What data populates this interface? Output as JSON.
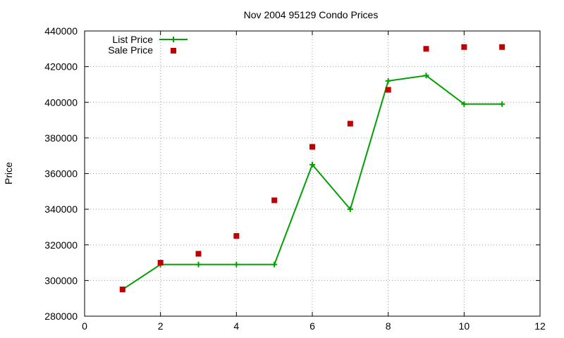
{
  "chart_data": {
    "type": "line",
    "title": "Nov 2004 95129 Condo Prices",
    "xlabel": "",
    "ylabel": "Price",
    "xlim": [
      0,
      12
    ],
    "ylim": [
      280000,
      440000
    ],
    "x_ticks": [
      0,
      2,
      4,
      6,
      8,
      10,
      12
    ],
    "y_ticks": [
      280000,
      300000,
      320000,
      340000,
      360000,
      380000,
      400000,
      420000,
      440000
    ],
    "grid": true,
    "legend_position": "top-left",
    "series": [
      {
        "name": "List Price",
        "style": "line-with-plus-markers",
        "color": "#00a000",
        "x": [
          1,
          2,
          3,
          4,
          5,
          6,
          7,
          8,
          9,
          10,
          11
        ],
        "values": [
          295000,
          309000,
          309000,
          309000,
          309000,
          365000,
          340000,
          412000,
          415000,
          399000,
          399000
        ]
      },
      {
        "name": "Sale Price",
        "style": "square-markers",
        "color": "#c00000",
        "x": [
          1,
          2,
          3,
          4,
          5,
          6,
          7,
          8,
          9,
          10,
          11
        ],
        "values": [
          295000,
          310000,
          315000,
          325000,
          345000,
          375000,
          388000,
          407000,
          430000,
          431000,
          431000
        ]
      }
    ]
  }
}
